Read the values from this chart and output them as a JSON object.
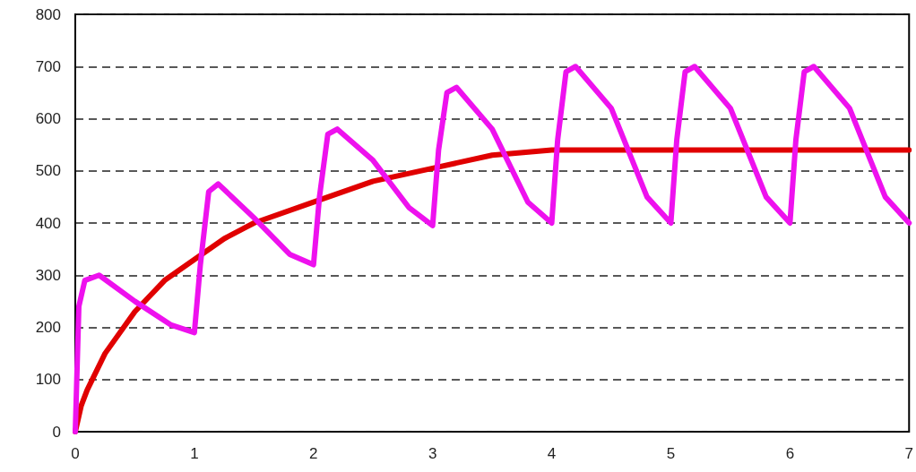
{
  "chart_data": {
    "type": "line",
    "xlim": [
      0,
      7
    ],
    "ylim": [
      0,
      800
    ],
    "xticks": [
      0,
      1,
      2,
      3,
      4,
      5,
      6,
      7
    ],
    "yticks": [
      0,
      100,
      200,
      300,
      400,
      500,
      600,
      700,
      800
    ],
    "grid": "y",
    "marker": "none",
    "line_style": "solid",
    "series": [
      {
        "color": "#e00000",
        "x": [
          0,
          0.05,
          0.1,
          0.25,
          0.5,
          0.75,
          1,
          1.25,
          1.5,
          2,
          2.5,
          3,
          3.5,
          4,
          4.5,
          5,
          6,
          7
        ],
        "values": [
          0,
          50,
          80,
          150,
          230,
          290,
          330,
          370,
          400,
          440,
          480,
          505,
          530,
          540,
          540,
          540,
          540,
          540
        ]
      },
      {
        "color": "#ee11ee",
        "x": [
          0,
          0.03,
          0.08,
          0.2,
          0.5,
          0.8,
          1,
          1.05,
          1.12,
          1.2,
          1.5,
          1.8,
          2,
          2.05,
          2.12,
          2.2,
          2.5,
          2.8,
          3,
          3.05,
          3.12,
          3.2,
          3.5,
          3.8,
          4,
          4.05,
          4.12,
          4.2,
          4.5,
          4.8,
          5,
          5.05,
          5.12,
          5.2,
          5.5,
          5.8,
          6,
          6.05,
          6.12,
          6.2,
          6.5,
          6.8,
          7
        ],
        "values": [
          0,
          240,
          290,
          300,
          250,
          205,
          190,
          320,
          460,
          475,
          410,
          340,
          320,
          450,
          570,
          580,
          520,
          430,
          395,
          540,
          650,
          660,
          580,
          440,
          400,
          560,
          690,
          700,
          620,
          450,
          400,
          560,
          690,
          700,
          620,
          450,
          400,
          560,
          690,
          700,
          620,
          450,
          400
        ]
      }
    ]
  }
}
